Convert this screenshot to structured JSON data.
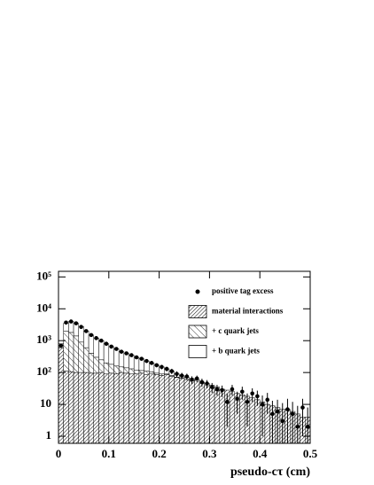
{
  "chart_data": {
    "type": "histogram",
    "xlabel": "pseudo-cτ (cm)",
    "xlim": [
      0,
      0.5
    ],
    "xticks": [
      0,
      0.1,
      0.2,
      0.3,
      0.4,
      0.5
    ],
    "ylim": [
      0.6,
      150000
    ],
    "log_y": true,
    "yticks": [
      1,
      10,
      {
        "value": 100,
        "label": "10²"
      },
      {
        "value": 1000,
        "label": "10³"
      },
      {
        "value": 10000,
        "label": "10⁴"
      },
      {
        "value": 100000,
        "label": "10⁵"
      }
    ],
    "legend": "upper right",
    "bins": [
      0,
      0.01,
      0.02,
      0.03,
      0.04,
      0.05,
      0.06,
      0.07,
      0.08,
      0.09,
      0.1,
      0.11,
      0.12,
      0.13,
      0.14,
      0.15,
      0.16,
      0.17,
      0.18,
      0.19,
      0.2,
      0.21,
      0.22,
      0.23,
      0.24,
      0.25,
      0.26,
      0.27,
      0.28,
      0.29,
      0.3,
      0.31,
      0.32,
      0.33,
      0.34,
      0.35,
      0.36,
      0.37,
      0.38,
      0.39,
      0.4,
      0.41,
      0.42,
      0.43,
      0.44,
      0.45,
      0.46,
      0.47,
      0.48,
      0.49,
      0.5
    ],
    "series": [
      {
        "name": "material interactions",
        "color": "#000000",
        "hatch": "dense",
        "values": [
          600,
          110,
          105,
          100,
          100,
          100,
          95,
          95,
          100,
          90,
          95,
          90,
          100,
          95,
          90,
          90,
          95,
          85,
          90,
          85,
          80,
          85,
          75,
          70,
          65,
          60,
          55,
          60,
          50,
          45,
          40,
          35,
          30,
          28,
          25,
          22,
          20,
          18,
          16,
          14,
          12,
          10,
          9,
          8,
          7,
          7,
          6,
          5,
          4,
          4
        ]
      },
      {
        "name": "+ c quark jets",
        "color": "#000000",
        "hatch": "sparse",
        "values": [
          100,
          1890,
          1695,
          1300,
          800,
          500,
          305,
          205,
          150,
          110,
          85,
          70,
          50,
          45,
          40,
          30,
          20,
          25,
          15,
          10,
          10,
          5,
          5,
          2,
          1,
          0,
          1,
          0,
          0,
          0,
          0,
          0,
          0,
          0,
          0,
          0,
          0,
          0,
          0,
          0,
          0,
          0,
          0,
          0,
          0,
          0,
          0,
          0,
          0,
          0
        ]
      },
      {
        "name": "+ b quark jets",
        "color": "#000000",
        "hatch": "none",
        "values": [
          100,
          1500,
          2200,
          2100,
          1900,
          1400,
          1100,
          900,
          750,
          600,
          470,
          390,
          300,
          260,
          220,
          180,
          155,
          120,
          95,
          75,
          60,
          40,
          30,
          18,
          14,
          10,
          9,
          0,
          0,
          0,
          0,
          0,
          0,
          0,
          0,
          0,
          0,
          0,
          0,
          0,
          0,
          0,
          0,
          0,
          0,
          0,
          0,
          0,
          0,
          0
        ]
      }
    ],
    "points": {
      "name": "positive tag excess",
      "color": "#000000",
      "x": [
        0.005,
        0.015,
        0.025,
        0.035,
        0.045,
        0.055,
        0.065,
        0.075,
        0.085,
        0.095,
        0.105,
        0.115,
        0.125,
        0.135,
        0.145,
        0.155,
        0.165,
        0.175,
        0.185,
        0.195,
        0.205,
        0.215,
        0.225,
        0.235,
        0.245,
        0.255,
        0.265,
        0.275,
        0.285,
        0.295,
        0.305,
        0.315,
        0.325,
        0.335,
        0.345,
        0.355,
        0.365,
        0.375,
        0.385,
        0.395,
        0.405,
        0.415,
        0.425,
        0.435,
        0.445,
        0.455,
        0.465,
        0.475,
        0.485,
        0.495
      ],
      "values": [
        700,
        3700,
        4000,
        3500,
        2700,
        2000,
        1500,
        1200,
        1000,
        800,
        650,
        550,
        450,
        400,
        350,
        300,
        270,
        230,
        200,
        170,
        150,
        130,
        110,
        90,
        80,
        75,
        60,
        65,
        50,
        45,
        35,
        30,
        28,
        12,
        30,
        15,
        25,
        12,
        22,
        18,
        10,
        14,
        5,
        6,
        3,
        7,
        5,
        2,
        8,
        2
      ],
      "errors": [
        60,
        120,
        130,
        120,
        100,
        90,
        80,
        70,
        60,
        55,
        50,
        45,
        40,
        38,
        35,
        33,
        31,
        29,
        27,
        25,
        24,
        22,
        21,
        19,
        18,
        17,
        16,
        15,
        14,
        13,
        12,
        11,
        11,
        10,
        11,
        10,
        11,
        10,
        10,
        9,
        9,
        9,
        8,
        8,
        8,
        8,
        7,
        7,
        7,
        6
      ]
    }
  }
}
